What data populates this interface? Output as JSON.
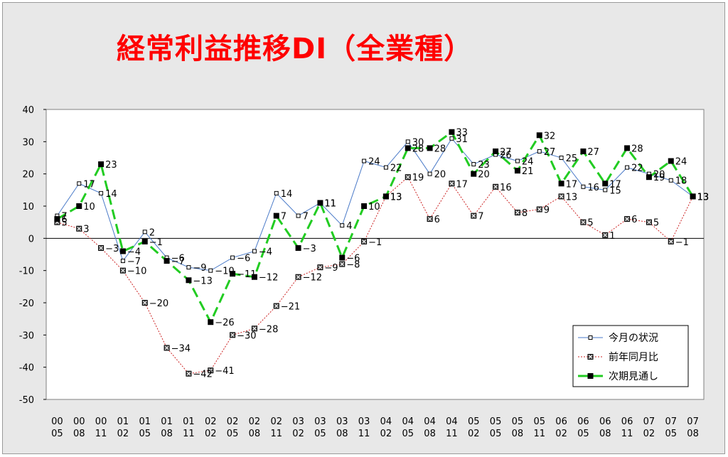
{
  "chart_data": {
    "type": "line",
    "title": "経常利益推移DI（全業種）",
    "ylim": [
      -50,
      40
    ],
    "yticks": [
      40,
      30,
      20,
      10,
      0,
      -10,
      -20,
      -30,
      -40,
      -50
    ],
    "grid": false,
    "legend_position": "bottom-right",
    "categories": [
      [
        "00",
        "05"
      ],
      [
        "00",
        "08"
      ],
      [
        "00",
        "11"
      ],
      [
        "01",
        "02"
      ],
      [
        "01",
        "05"
      ],
      [
        "01",
        "08"
      ],
      [
        "01",
        "11"
      ],
      [
        "02",
        "02"
      ],
      [
        "02",
        "05"
      ],
      [
        "02",
        "08"
      ],
      [
        "02",
        "11"
      ],
      [
        "03",
        "02"
      ],
      [
        "03",
        "05"
      ],
      [
        "03",
        "08"
      ],
      [
        "03",
        "11"
      ],
      [
        "04",
        "02"
      ],
      [
        "04",
        "05"
      ],
      [
        "04",
        "08"
      ],
      [
        "04",
        "11"
      ],
      [
        "05",
        "02"
      ],
      [
        "05",
        "05"
      ],
      [
        "05",
        "08"
      ],
      [
        "05",
        "11"
      ],
      [
        "06",
        "02"
      ],
      [
        "06",
        "05"
      ],
      [
        "06",
        "08"
      ],
      [
        "06",
        "11"
      ],
      [
        "07",
        "02"
      ],
      [
        "07",
        "05"
      ],
      [
        "07",
        "08"
      ]
    ],
    "series": [
      {
        "name": "今月の状況",
        "color": "#4a7ac8",
        "style": "solid",
        "marker": "hollow-square",
        "values": [
          7,
          17,
          14,
          -7,
          2,
          -6,
          -9,
          -10,
          -6,
          -4,
          14,
          7,
          11,
          4,
          24,
          22,
          30,
          20,
          31,
          23,
          26,
          24,
          27,
          25,
          16,
          15,
          22,
          20,
          18,
          13
        ]
      },
      {
        "name": "前年同月比",
        "color": "#cc2222",
        "style": "dotted",
        "marker": "x-square",
        "values": [
          5,
          3,
          -3,
          -10,
          -20,
          -34,
          -42,
          -41,
          -30,
          -28,
          -21,
          -12,
          -9,
          -8,
          -1,
          13,
          19,
          6,
          17,
          7,
          16,
          8,
          9,
          13,
          5,
          1,
          6,
          5,
          -1,
          13
        ]
      },
      {
        "name": "次期見通し",
        "color": "#22cc22",
        "style": "dashed",
        "marker": "filled-square",
        "values": [
          6,
          10,
          23,
          -4,
          -1,
          -7,
          -13,
          -26,
          -11,
          -12,
          7,
          -3,
          11,
          -6,
          10,
          13,
          28,
          28,
          33,
          20,
          27,
          21,
          32,
          17,
          27,
          17,
          28,
          19,
          24,
          13
        ]
      }
    ]
  }
}
